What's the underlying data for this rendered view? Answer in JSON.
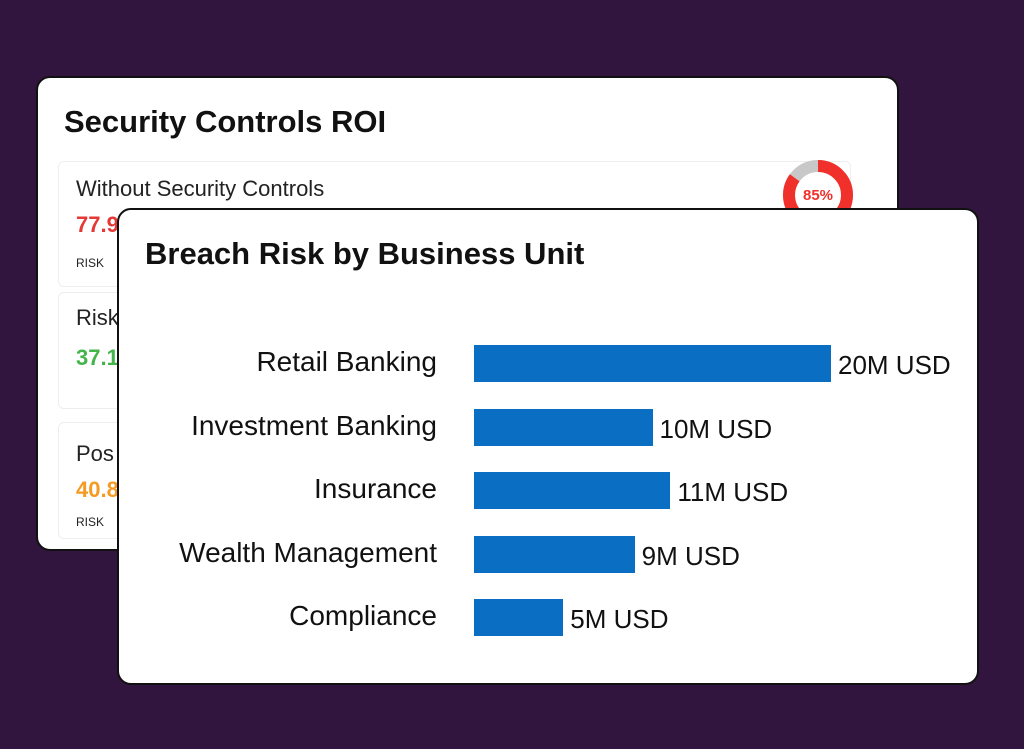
{
  "roi_card": {
    "title": "Security Controls ROI",
    "panels": [
      {
        "label": "Without Security Controls",
        "value": "77.9",
        "sub": "RISK",
        "color": "#e53935"
      },
      {
        "label": "Risk",
        "value": "37.1",
        "sub": "",
        "color": "#43b54a"
      },
      {
        "label": "Pos",
        "value": "40.8",
        "sub": "RISK",
        "color": "#f59a23"
      }
    ],
    "gauge": {
      "text": "85%",
      "percent": 85,
      "color": "#f0302a",
      "track": "#c8c8c8"
    }
  },
  "chart_data": {
    "type": "bar",
    "orientation": "horizontal",
    "title": "Breach Risk by Business Unit",
    "categories": [
      "Retail Banking",
      "Investment Banking",
      "Insurance",
      "Wealth Management",
      "Compliance"
    ],
    "values": [
      20,
      10,
      11,
      9,
      5
    ],
    "value_labels": [
      "20M USD",
      "10M USD",
      "11M USD",
      "9M USD",
      "5M USD"
    ],
    "unit": "M USD",
    "bar_color": "#0a6fc2",
    "grid": false
  }
}
